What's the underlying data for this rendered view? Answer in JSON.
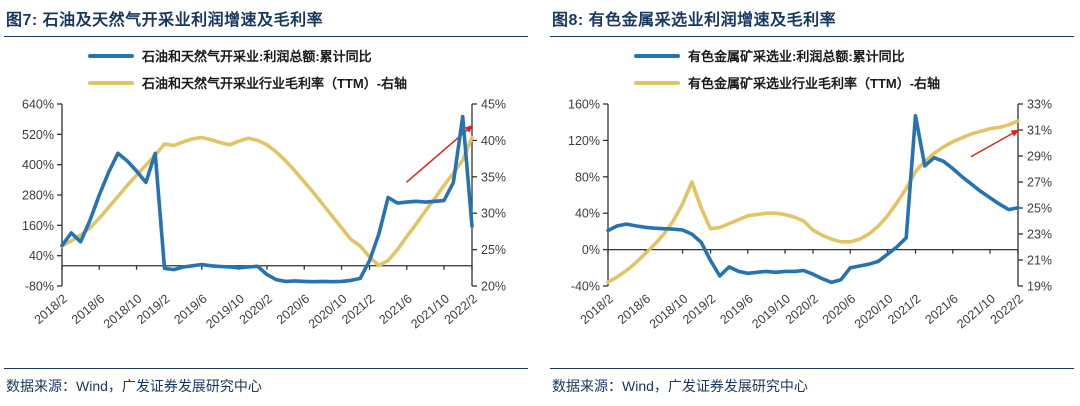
{
  "source_note": "数据来源：Wind，广发证券发展研究中心",
  "colors": {
    "navy": "#17375E",
    "blue": "#2673B3",
    "yellow": "#E3C464",
    "red": "#D9251C",
    "axis": "#333333",
    "tick_text": "#3D3D3D"
  },
  "chart_data": [
    {
      "type": "line",
      "title": "图7: 石油及天然气开采业利润增速及毛利率",
      "legend_position": "top",
      "grid": false,
      "x": [
        "2018/2",
        "2018/3",
        "2018/4",
        "2018/5",
        "2018/6",
        "2018/7",
        "2018/8",
        "2018/9",
        "2018/10",
        "2018/11",
        "2018/12",
        "2019/2",
        "2019/3",
        "2019/4",
        "2019/5",
        "2019/6",
        "2019/7",
        "2019/8",
        "2019/9",
        "2019/10",
        "2019/11",
        "2019/12",
        "2020/2",
        "2020/3",
        "2020/4",
        "2020/5",
        "2020/6",
        "2020/7",
        "2020/8",
        "2020/9",
        "2020/10",
        "2020/11",
        "2020/12",
        "2021/2",
        "2021/3",
        "2021/4",
        "2021/5",
        "2021/6",
        "2021/7",
        "2021/8",
        "2021/9",
        "2021/10",
        "2021/11",
        "2021/12",
        "2022/2"
      ],
      "x_tick_labels": [
        "2018/2",
        "2018/6",
        "2018/10",
        "2019/2",
        "2019/6",
        "2019/10",
        "2020/2",
        "2020/6",
        "2020/10",
        "2021/2",
        "2021/6",
        "2021/10",
        "2022/2"
      ],
      "left_axis": {
        "min": -80,
        "max": 640,
        "step": 120,
        "ticks": [
          "640%",
          "520%",
          "400%",
          "280%",
          "160%",
          "40%",
          "-80%"
        ]
      },
      "right_axis": {
        "min": 20,
        "max": 45,
        "step": 5,
        "ticks": [
          "45%",
          "40%",
          "35%",
          "30%",
          "25%",
          "20%"
        ]
      },
      "series": [
        {
          "name": "石油和天然气开采业:利润总额:累计同比",
          "axis": "left",
          "color_key": "blue",
          "values": [
            80,
            130,
            95,
            180,
            280,
            370,
            445,
            415,
            375,
            330,
            445,
            -10,
            -15,
            -5,
            0,
            5,
            0,
            -3,
            -5,
            -8,
            -5,
            -2,
            -35,
            -55,
            -62,
            -60,
            -62,
            -63,
            -62,
            -63,
            -62,
            -58,
            -50,
            20,
            125,
            270,
            248,
            252,
            255,
            252,
            255,
            258,
            330,
            590,
            157
          ]
        },
        {
          "name": "石油和天然气开采业行业毛利率（TTM）-右轴",
          "axis": "right",
          "color_key": "yellow",
          "values": [
            25.5,
            26.2,
            27,
            28,
            29.3,
            30.8,
            32.3,
            33.8,
            35.2,
            36.6,
            38,
            39.5,
            39.3,
            39.8,
            40.2,
            40.4,
            40.1,
            39.7,
            39.4,
            39.9,
            40.3,
            40,
            39.4,
            38.4,
            37.2,
            35.8,
            34.3,
            32.8,
            31.2,
            29.6,
            28,
            26.4,
            25.5,
            24,
            22.8,
            23.5,
            25,
            26.8,
            28.5,
            30.3,
            32,
            33.8,
            35.5,
            37.3,
            40.4
          ]
        }
      ],
      "annotation_arrow": {
        "color_key": "red",
        "x1": 0.84,
        "y1": 0.43,
        "x2": 1.0,
        "y2": 0.12
      }
    },
    {
      "type": "line",
      "title": "图8: 有色金属采选业利润增速及毛利率",
      "legend_position": "top",
      "grid": false,
      "x": [
        "2018/2",
        "2018/3",
        "2018/4",
        "2018/5",
        "2018/6",
        "2018/7",
        "2018/8",
        "2018/9",
        "2018/10",
        "2018/11",
        "2018/12",
        "2019/2",
        "2019/3",
        "2019/4",
        "2019/5",
        "2019/6",
        "2019/7",
        "2019/8",
        "2019/9",
        "2019/10",
        "2019/11",
        "2019/12",
        "2020/2",
        "2020/3",
        "2020/4",
        "2020/5",
        "2020/6",
        "2020/7",
        "2020/8",
        "2020/9",
        "2020/10",
        "2020/11",
        "2020/12",
        "2021/2",
        "2021/3",
        "2021/4",
        "2021/5",
        "2021/6",
        "2021/7",
        "2021/8",
        "2021/9",
        "2021/10",
        "2021/11",
        "2021/12",
        "2022/2"
      ],
      "x_tick_labels": [
        "2018/2",
        "2018/6",
        "2018/10",
        "2019/2",
        "2019/6",
        "2019/10",
        "2020/2",
        "2020/6",
        "2020/10",
        "2021/2",
        "2021/6",
        "2021/10",
        "2022/2"
      ],
      "left_axis": {
        "min": -40,
        "max": 160,
        "step": 40,
        "ticks": [
          "160%",
          "120%",
          "80%",
          "40%",
          "0%",
          "-40%"
        ]
      },
      "right_axis": {
        "min": 19,
        "max": 33,
        "step": 2,
        "ticks": [
          "33%",
          "31%",
          "29%",
          "27%",
          "25%",
          "23%",
          "21%",
          "19%"
        ]
      },
      "series": [
        {
          "name": "有色金属矿采选业:利润总额:累计同比",
          "axis": "left",
          "color_key": "blue",
          "values": [
            21,
            26,
            28,
            26,
            24.5,
            23.5,
            23,
            22.5,
            21.5,
            17,
            8,
            -12,
            -29,
            -19,
            -24,
            -26,
            -25,
            -24,
            -25,
            -24,
            -24,
            -23,
            -27,
            -32,
            -36,
            -33,
            -20,
            -18,
            -16,
            -13,
            -5,
            3,
            13,
            147,
            92,
            101,
            97,
            89,
            80,
            72,
            64,
            57,
            50,
            44,
            46
          ]
        },
        {
          "name": "有色金属矿采选业行业毛利率（TTM）-右轴",
          "axis": "right",
          "color_key": "yellow",
          "values": [
            19.3,
            19.7,
            20.2,
            20.8,
            21.5,
            22.2,
            23,
            24,
            25.3,
            27,
            25,
            23.4,
            23.5,
            23.8,
            24.1,
            24.4,
            24.5,
            24.6,
            24.6,
            24.5,
            24.3,
            24,
            23.3,
            22.9,
            22.6,
            22.4,
            22.4,
            22.6,
            23,
            23.6,
            24.4,
            25.4,
            26.5,
            27.8,
            28.6,
            29.2,
            29.7,
            30.1,
            30.4,
            30.7,
            30.9,
            31.1,
            31.2,
            31.4,
            31.7
          ]
        }
      ],
      "annotation_arrow": {
        "color_key": "red",
        "x1": 0.885,
        "y1": 0.29,
        "x2": 1.0,
        "y2": 0.145
      }
    }
  ]
}
